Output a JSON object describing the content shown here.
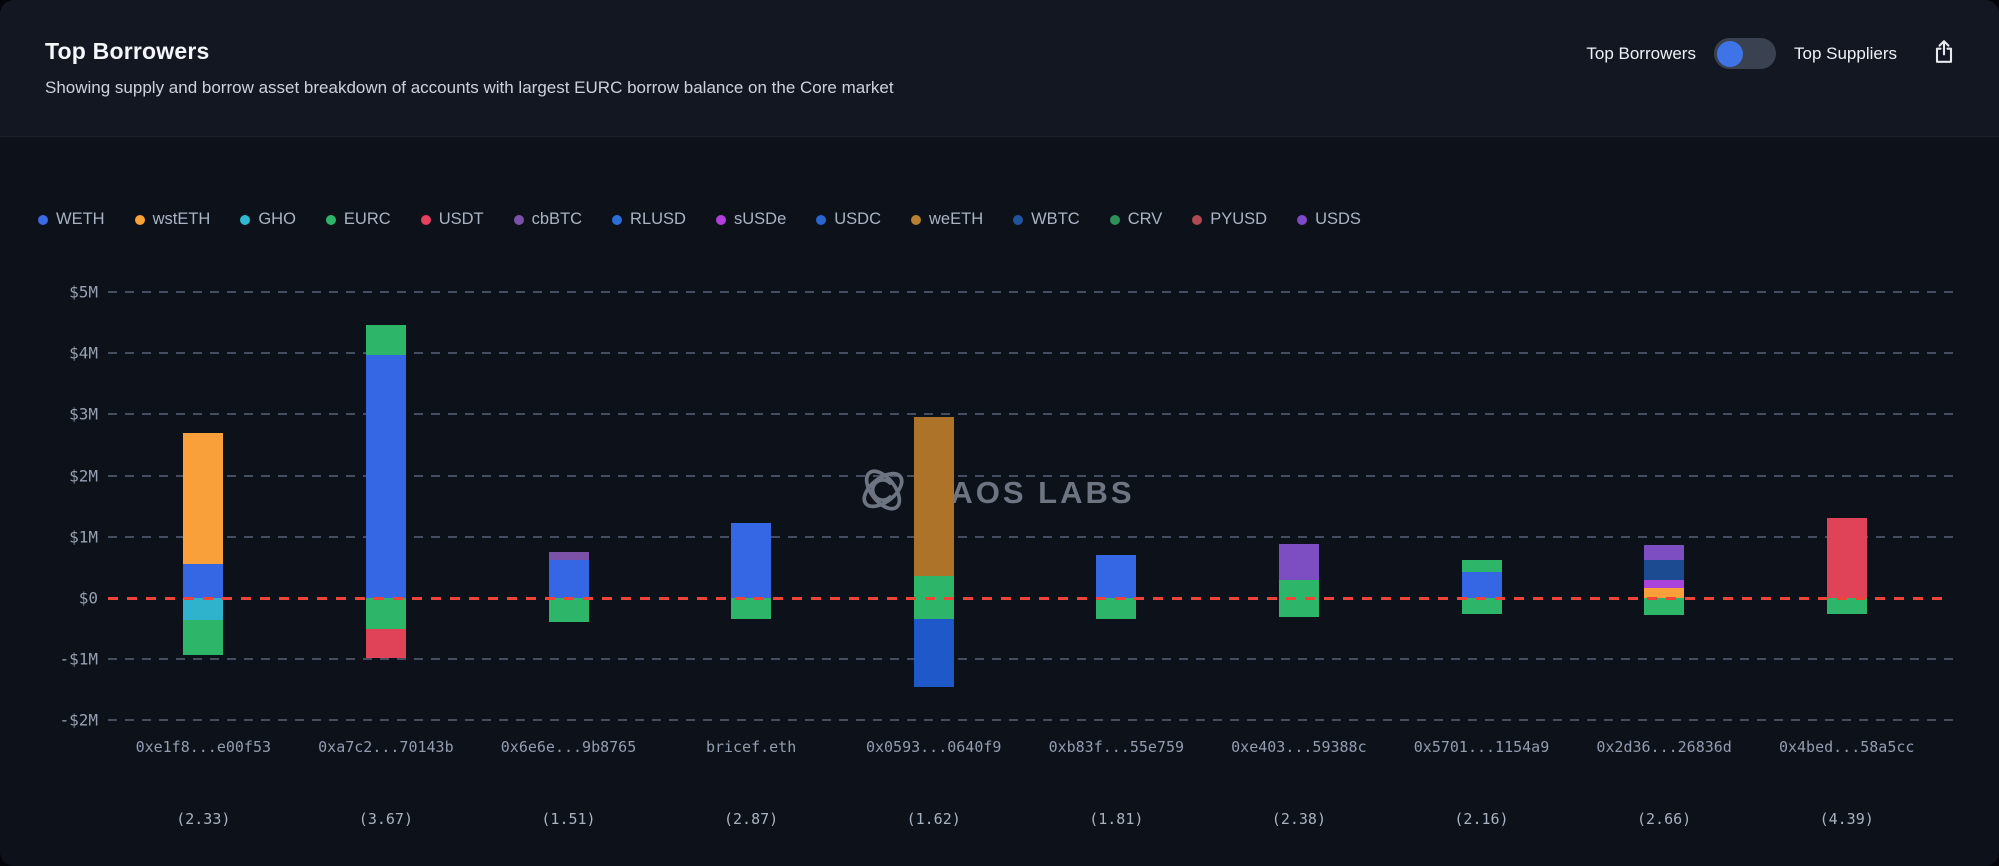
{
  "header": {
    "title": "Top Borrowers",
    "subtitle": "Showing supply and borrow asset breakdown of accounts with largest EURC borrow balance on the Core market",
    "toggle": {
      "left_label": "Top Borrowers",
      "right_label": "Top Suppliers",
      "selected": "Top Borrowers",
      "knob_color": "#3f74e8",
      "track_color": "#3a4252"
    }
  },
  "watermark": {
    "text": "HAOS LABS",
    "logo": "chaos-labs-logo"
  },
  "legend": [
    {
      "label": "WETH",
      "color": "#3b6be4"
    },
    {
      "label": "wstETH",
      "color": "#f9a235"
    },
    {
      "label": "GHO",
      "color": "#2fb9cf"
    },
    {
      "label": "EURC",
      "color": "#2eb56b"
    },
    {
      "label": "USDT",
      "color": "#e4405f"
    },
    {
      "label": "cbBTC",
      "color": "#7b52a8"
    },
    {
      "label": "RLUSD",
      "color": "#2b6fd8"
    },
    {
      "label": "sUSDe",
      "color": "#b23fdb"
    },
    {
      "label": "USDC",
      "color": "#2a66d0"
    },
    {
      "label": "weETH",
      "color": "#b5802f"
    },
    {
      "label": "WBTC",
      "color": "#20549c"
    },
    {
      "label": "CRV",
      "color": "#2e9158"
    },
    {
      "label": "PYUSD",
      "color": "#ad4a52"
    },
    {
      "label": "USDS",
      "color": "#7e4ac6"
    }
  ],
  "chart_data": {
    "type": "bar",
    "subtype": "stacked-diverging",
    "title": "Top Borrowers",
    "unit": "USD millions",
    "ylim": [
      -2,
      5
    ],
    "y_ticks": [
      {
        "value": 5,
        "label": "$5M"
      },
      {
        "value": 4,
        "label": "$4M"
      },
      {
        "value": 3,
        "label": "$3M"
      },
      {
        "value": 2,
        "label": "$2M"
      },
      {
        "value": 1,
        "label": "$1M"
      },
      {
        "value": 0,
        "label": "$0"
      },
      {
        "value": -1,
        "label": "-$1M"
      },
      {
        "value": -2,
        "label": "-$2M"
      }
    ],
    "grid": "dashed horizontal gridlines, red dashed zero line",
    "zero_line_color": "#f04438",
    "legend_position": "top-left",
    "asset_colors": {
      "WETH": "#3566e3",
      "wstETH": "#f9a03a",
      "GHO": "#2fb3cd",
      "EURC": "#2db56a",
      "USDT": "#e04358",
      "cbBTC": "#7b52a8",
      "RLUSD": "#2b6fd8",
      "sUSDe": "#a944dc",
      "USDC": "#1f58c8",
      "weETH": "#ad7429",
      "WBTC": "#1d4b91",
      "CRV": "#2e9158",
      "PYUSD": "#ad4a52",
      "USDS": "#7d4dc2"
    },
    "bars": [
      {
        "label": "0xe1f8...e00f53",
        "health_factor": "(2.33)",
        "supply": [
          [
            "WETH",
            0.56
          ],
          [
            "wstETH",
            2.13
          ]
        ],
        "borrow": [
          [
            "GHO",
            0.36
          ],
          [
            "EURC",
            0.57
          ]
        ]
      },
      {
        "label": "0xa7c2...70143b",
        "health_factor": "(3.67)",
        "supply": [
          [
            "WETH",
            3.97
          ],
          [
            "EURC",
            0.49
          ]
        ],
        "borrow": [
          [
            "EURC",
            0.5
          ],
          [
            "USDT",
            0.48
          ]
        ]
      },
      {
        "label": "0x6e6e...9b8765",
        "health_factor": "(1.51)",
        "supply": [
          [
            "WETH",
            0.62
          ],
          [
            "cbBTC",
            0.13
          ]
        ],
        "borrow": [
          [
            "EURC",
            0.4
          ]
        ]
      },
      {
        "label": "bricef.eth",
        "health_factor": "(2.87)",
        "supply": [
          [
            "WETH",
            1.22
          ]
        ],
        "borrow": [
          [
            "EURC",
            0.35
          ]
        ]
      },
      {
        "label": "0x0593...0640f9",
        "health_factor": "(1.62)",
        "supply": [
          [
            "EURC",
            0.36
          ],
          [
            "weETH",
            2.6
          ]
        ],
        "borrow": [
          [
            "EURC",
            0.35
          ],
          [
            "USDC",
            1.11
          ]
        ]
      },
      {
        "label": "0xb83f...55e759",
        "health_factor": "(1.81)",
        "supply": [
          [
            "WETH",
            0.7
          ]
        ],
        "borrow": [
          [
            "EURC",
            0.34
          ]
        ]
      },
      {
        "label": "0xe403...59388c",
        "health_factor": "(2.38)",
        "supply": [
          [
            "EURC",
            0.29
          ],
          [
            "USDS",
            0.59
          ]
        ],
        "borrow": [
          [
            "EURC",
            0.31
          ]
        ]
      },
      {
        "label": "0x5701...1154a9",
        "health_factor": "(2.16)",
        "supply": [
          [
            "WETH",
            0.43
          ],
          [
            "EURC",
            0.19
          ]
        ],
        "borrow": [
          [
            "EURC",
            0.26
          ]
        ]
      },
      {
        "label": "0x2d36...26836d",
        "health_factor": "(2.66)",
        "supply": [
          [
            "wstETH",
            0.17
          ],
          [
            "sUSDe",
            0.13
          ],
          [
            "WBTC",
            0.32
          ],
          [
            "USDS",
            0.24
          ]
        ],
        "borrow": [
          [
            "EURC",
            0.27
          ]
        ]
      },
      {
        "label": "0x4bed...58a5cc",
        "health_factor": "(4.39)",
        "supply": [
          [
            "USDT",
            1.3
          ]
        ],
        "borrow": [
          [
            "EURC",
            0.26
          ]
        ]
      }
    ]
  }
}
